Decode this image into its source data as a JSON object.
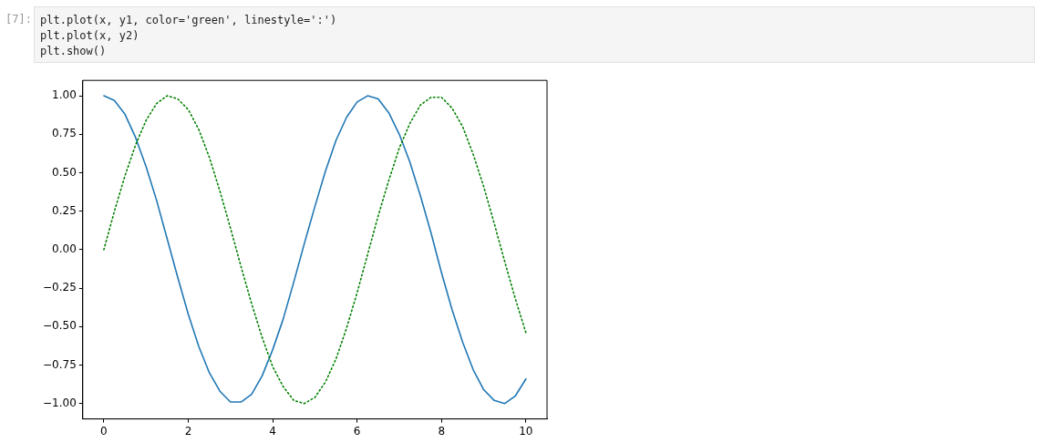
{
  "chart_data": {
    "type": "line",
    "annotations": [
      "[7]:",
      "plt.plot(x, y1, color='green', linestyle=':')",
      "plt.plot(x, y2)",
      "plt.show()"
    ],
    "x": [
      0,
      0.25,
      0.5,
      0.75,
      1,
      1.25,
      1.5,
      1.75,
      2,
      2.25,
      2.5,
      2.75,
      3,
      3.25,
      3.5,
      3.75,
      4,
      4.25,
      4.5,
      4.75,
      5,
      5.25,
      5.5,
      5.75,
      6,
      6.25,
      6.5,
      6.75,
      7,
      7.25,
      7.5,
      7.75,
      8,
      8.25,
      8.5,
      8.75,
      9,
      9.25,
      9.5,
      9.75,
      10
    ],
    "series": [
      {
        "color": "#008000",
        "line_style": "dotted",
        "values": [
          0,
          0.25,
          0.48,
          0.68,
          0.84,
          0.95,
          1.0,
          0.98,
          0.91,
          0.78,
          0.6,
          0.38,
          0.14,
          -0.11,
          -0.35,
          -0.57,
          -0.76,
          -0.89,
          -0.98,
          -1.0,
          -0.96,
          -0.86,
          -0.71,
          -0.51,
          -0.28,
          -0.03,
          0.22,
          0.45,
          0.66,
          0.82,
          0.94,
          0.99,
          0.99,
          0.92,
          0.8,
          0.62,
          0.41,
          0.17,
          -0.08,
          -0.32,
          -0.54
        ]
      },
      {
        "color": "#1f77b4",
        "line_style": "solid",
        "values": [
          1.0,
          0.97,
          0.88,
          0.73,
          0.54,
          0.32,
          0.07,
          -0.18,
          -0.42,
          -0.63,
          -0.8,
          -0.92,
          -0.99,
          -0.99,
          -0.94,
          -0.82,
          -0.65,
          -0.45,
          -0.21,
          0.04,
          0.28,
          0.51,
          0.71,
          0.86,
          0.96,
          1.0,
          0.98,
          0.89,
          0.75,
          0.57,
          0.35,
          0.11,
          -0.15,
          -0.39,
          -0.6,
          -0.78,
          -0.91,
          -0.98,
          -1.0,
          -0.95,
          -0.84
        ]
      }
    ],
    "xlim": [
      -0.5,
      10.5
    ],
    "xticks": [
      0,
      2,
      4,
      6,
      8,
      10
    ],
    "ylim": [
      -1.1,
      1.1
    ],
    "yticks": [
      {
        "value": -1,
        "label": "−1.00"
      },
      {
        "value": -0.75,
        "label": "−0.75"
      },
      {
        "value": -0.5,
        "label": "−0.50"
      },
      {
        "value": -0.25,
        "label": "−0.25"
      },
      {
        "value": 0,
        "label": "0.00"
      },
      {
        "value": 0.25,
        "label": "0.25"
      },
      {
        "value": 0.5,
        "label": "0.50"
      },
      {
        "value": 0.75,
        "label": "0.75"
      },
      {
        "value": 1,
        "label": "1.00"
      }
    ],
    "grid": false,
    "legend": false
  }
}
